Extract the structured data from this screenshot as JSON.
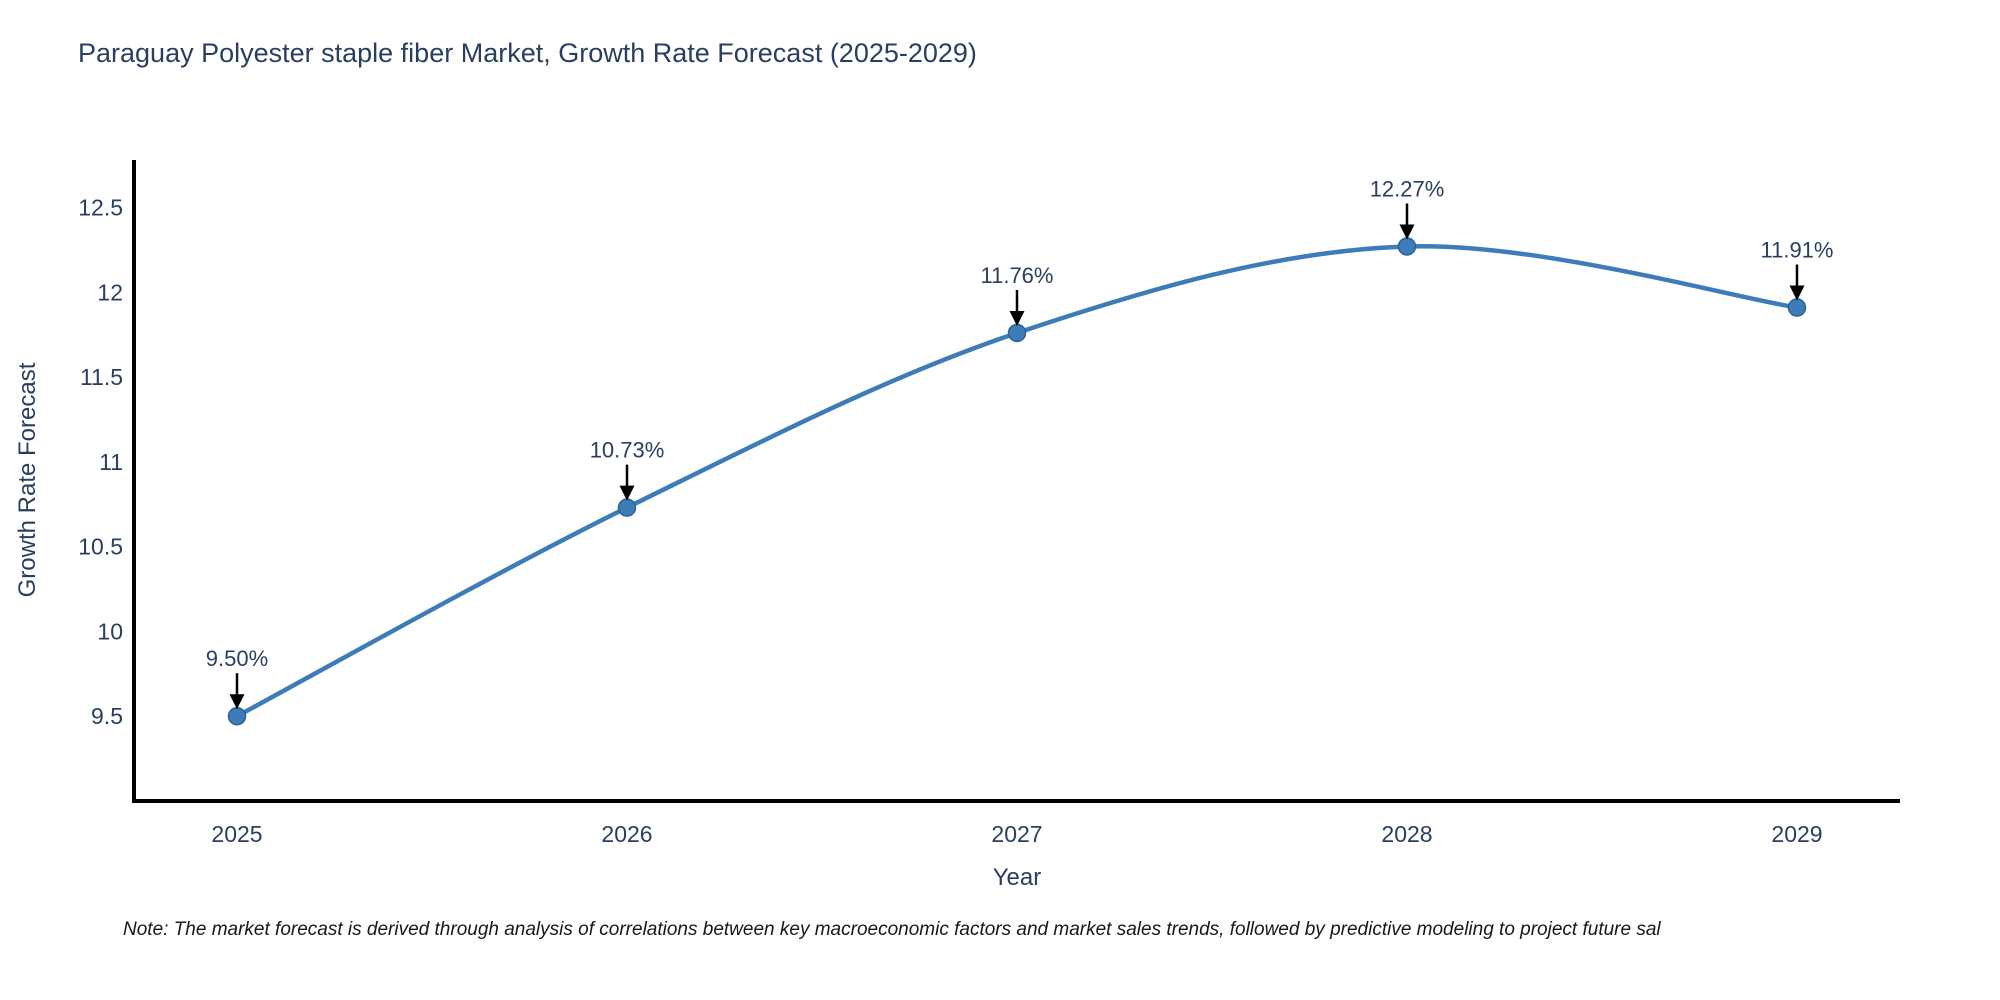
{
  "title": "Paraguay Polyester staple fiber Market, Growth Rate Forecast (2025-2029)",
  "note": "Note: The market forecast is derived through analysis of correlations between key macroeconomic factors and market sales trends, followed by predictive modeling to project future sal",
  "chart_data": {
    "type": "line",
    "title": "Paraguay Polyester staple fiber Market, Growth Rate Forecast (2025-2029)",
    "xlabel": "Year",
    "ylabel": "Growth Rate Forecast",
    "categories": [
      "2025",
      "2026",
      "2027",
      "2028",
      "2029"
    ],
    "values": [
      9.5,
      10.73,
      11.76,
      12.27,
      11.91
    ],
    "point_labels": [
      "9.50%",
      "10.73%",
      "11.76%",
      "12.27%",
      "11.91%"
    ],
    "yticks": [
      9.5,
      10,
      10.5,
      11,
      11.5,
      12,
      12.5
    ],
    "ylim": [
      9.0,
      12.78
    ],
    "grid": false,
    "legend": "none",
    "line_shape": "spline",
    "line_color": "#3d7cb8",
    "marker_color": "#3d7cb8",
    "marker_edge_color": "#2e6293",
    "axis_color": "#000000",
    "text_color": "#2a3f5f",
    "annotation_color": "#2a3f5f",
    "arrow_color": "#000000"
  }
}
